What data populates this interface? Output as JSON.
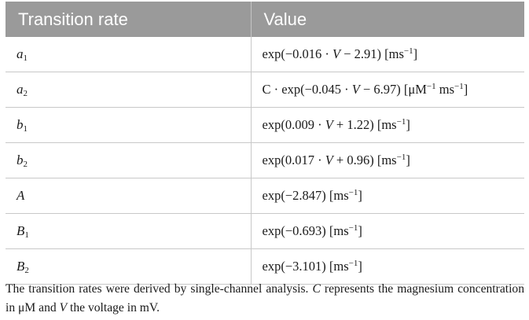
{
  "table": {
    "headers": [
      "Transition rate",
      "Value"
    ],
    "rows": [
      {
        "symbol": "a",
        "subscript": "1",
        "value_html": "exp(&minus;0.016 &middot; <i>V</i> &minus; 2.91) [ms<sup>&minus;1</sup>]"
      },
      {
        "symbol": "a",
        "subscript": "2",
        "value_html": "C &middot; exp(&minus;0.045 &middot; <i>V</i> &minus; 6.97) [&mu;M<sup>&minus;1</sup> ms<sup>&minus;1</sup>]"
      },
      {
        "symbol": "b",
        "subscript": "1",
        "value_html": "exp(0.009 &middot; <i>V</i> + 1.22) [ms<sup>&minus;1</sup>]"
      },
      {
        "symbol": "b",
        "subscript": "2",
        "value_html": "exp(0.017 &middot; <i>V</i> + 0.96) [ms<sup>&minus;1</sup>]"
      },
      {
        "symbol": "A",
        "subscript": "",
        "value_html": "exp(&minus;2.847) [ms<sup>&minus;1</sup>]"
      },
      {
        "symbol": "B",
        "subscript": "1",
        "value_html": "exp(&minus;0.693) [ms<sup>&minus;1</sup>]"
      },
      {
        "symbol": "B",
        "subscript": "2",
        "value_html": "exp(&minus;3.101) [ms<sup>&minus;1</sup>]"
      }
    ]
  },
  "footnote_html": "The transition rates were derived by single-channel analysis. <i>C</i> represents the magnesium concentration in &mu;M and <i>V</i> the voltage in mV."
}
